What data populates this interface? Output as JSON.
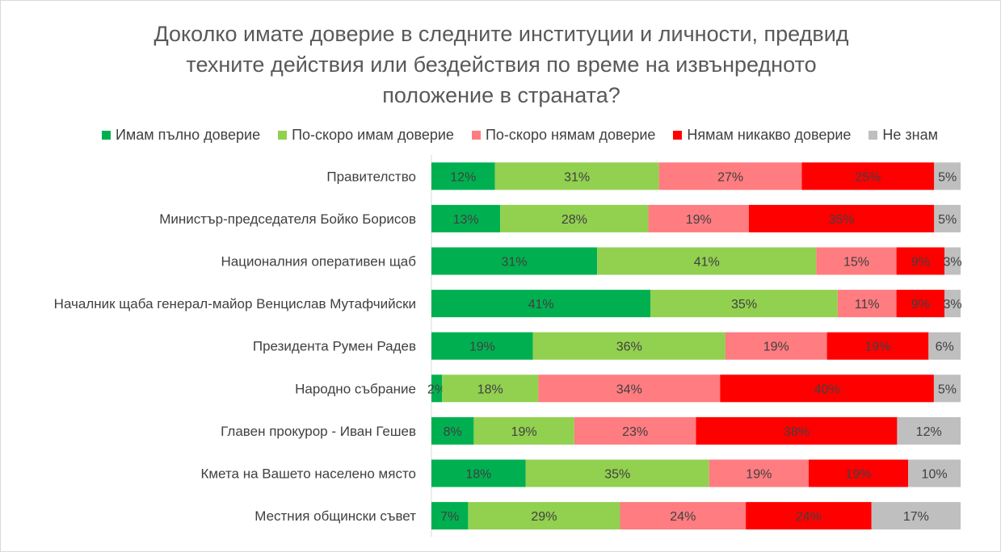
{
  "chart_data": {
    "type": "bar",
    "orientation": "horizontal",
    "stacking": "percent",
    "title": "Доколко имате доверие в следните институции и личности, предвид\nтехните действия или бездействия по време на извънредното\nположение в страната?",
    "legend_position": "top",
    "grid": false,
    "value_suffix": "%",
    "categories": [
      "Правителство",
      "Министър-председателя Бойко Борисов",
      "Националния оперативен щаб",
      "Началник щаба генерал-майор Венцислав Мутафчийски",
      "Президента Румен Радев",
      "Народно събрание",
      "Главен прокурор - Иван Гешев",
      "Кмета на Вашето населено място",
      "Местния общински съвет"
    ],
    "series": [
      {
        "name": "Имам пълно доверие",
        "color": "#00B050",
        "values": [
          12,
          13,
          31,
          41,
          19,
          2,
          8,
          18,
          7
        ]
      },
      {
        "name": "По-скоро имам доверие",
        "color": "#92D050",
        "values": [
          31,
          28,
          41,
          35,
          36,
          18,
          19,
          35,
          29
        ]
      },
      {
        "name": "По-скоро нямам доверие",
        "color": "#FF7C80",
        "values": [
          27,
          19,
          15,
          11,
          19,
          34,
          23,
          19,
          24
        ]
      },
      {
        "name": "Нямам никакво доверие",
        "color": "#FF0000",
        "values": [
          25,
          35,
          9,
          9,
          19,
          40,
          38,
          19,
          24
        ]
      },
      {
        "name": "Не знам",
        "color": "#BFBFBF",
        "values": [
          5,
          5,
          3,
          3,
          6,
          5,
          12,
          10,
          17
        ]
      }
    ]
  }
}
